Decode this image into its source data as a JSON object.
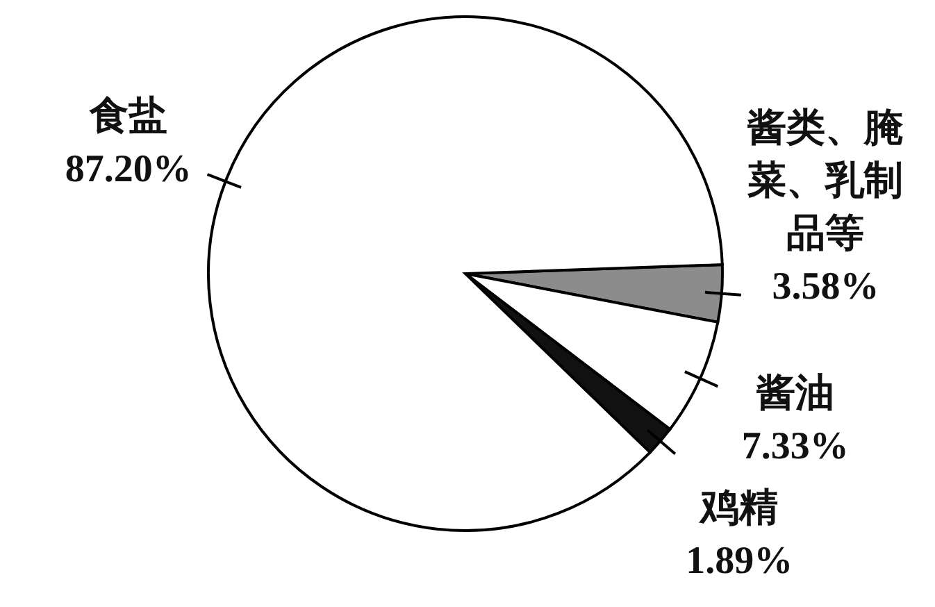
{
  "chart_data": {
    "type": "pie",
    "categories": [
      "酱类、腌菜、乳制品等",
      "酱油",
      "鸡精",
      "食盐"
    ],
    "values": [
      3.58,
      7.33,
      1.89,
      87.2
    ],
    "value_labels": [
      "3.58%",
      "7.33%",
      "1.89%",
      "87.20%"
    ],
    "colors": [
      "#8c8c8c",
      "#ffffff",
      "#111111",
      "#ffffff"
    ]
  }
}
